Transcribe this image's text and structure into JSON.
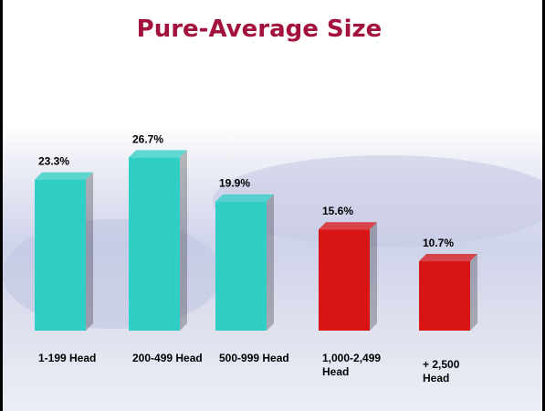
{
  "chart_data": {
    "type": "bar",
    "title": "Pure-Average Size",
    "categories": [
      "1-199 Head",
      "200-499 Head",
      "500-999 Head",
      "1,000-2,499 Head",
      "+ 2,500 Head"
    ],
    "values": [
      23.3,
      26.7,
      19.9,
      15.6,
      10.7
    ],
    "value_labels": [
      "23.3%",
      "26.7%",
      "19.9%",
      "15.6%",
      "10.7%"
    ],
    "colors": [
      "#2fcfc6",
      "#2fcfc6",
      "#2fcfc6",
      "#d81414",
      "#d81414"
    ]
  }
}
